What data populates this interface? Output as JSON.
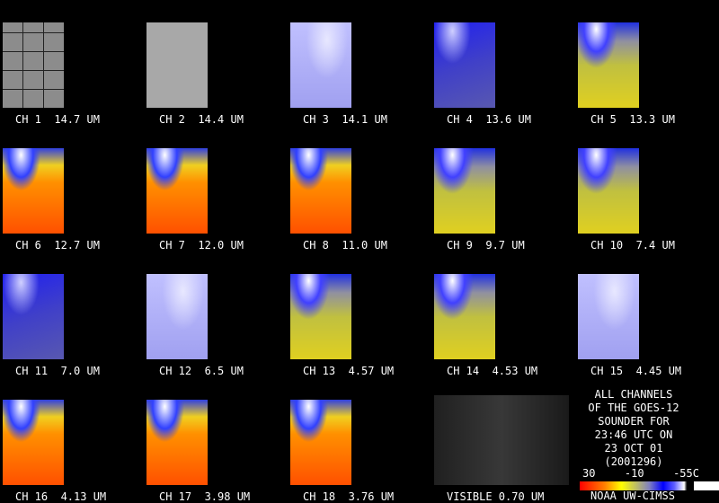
{
  "panels": [
    {
      "label": "CH 1  14.7 UM"
    },
    {
      "label": "CH 2  14.4 UM"
    },
    {
      "label": "CH 3  14.1 UM"
    },
    {
      "label": "CH 4  13.6 UM"
    },
    {
      "label": "CH 5  13.3 UM"
    },
    {
      "label": "CH 6  12.7 UM"
    },
    {
      "label": "CH 7  12.0 UM"
    },
    {
      "label": "CH 8  11.0 UM"
    },
    {
      "label": "CH 9  9.7 UM"
    },
    {
      "label": "CH 10  7.4 UM"
    },
    {
      "label": "CH 11  7.0 UM"
    },
    {
      "label": "CH 12  6.5 UM"
    },
    {
      "label": "CH 13  4.57 UM"
    },
    {
      "label": "CH 14  4.53 UM"
    },
    {
      "label": "CH 15  4.45 UM"
    },
    {
      "label": "CH 16  4.13 UM"
    },
    {
      "label": "CH 17  3.98 UM"
    },
    {
      "label": "CH 18  3.76 UM"
    },
    {
      "label": "VISIBLE 0.70 UM"
    }
  ],
  "info": {
    "lines": [
      "ALL CHANNELS",
      "OF THE GOES-12",
      "SOUNDER FOR",
      "23:46 UTC ON",
      "23 OCT 01",
      "(2001296)"
    ]
  },
  "colorbar": {
    "labels": [
      "30",
      "-10",
      "-55C"
    ]
  },
  "credit": "NOAA UW-CIMSS"
}
